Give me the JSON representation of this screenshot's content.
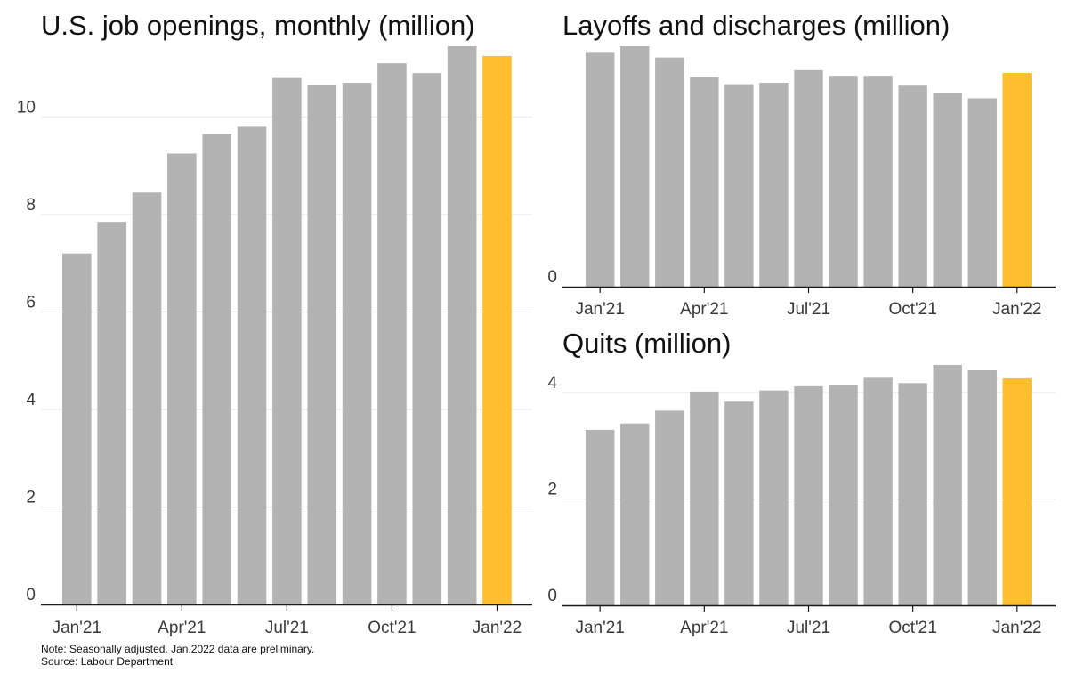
{
  "colors": {
    "bar": "#b3b3b3",
    "highlight": "#fdbf2d",
    "grid": "#e6e6e6",
    "axis": "#1a1a1a"
  },
  "notes": {
    "note": "Note: Seasonally adjusted. Jan.2022 data are preliminary.",
    "source": "Source: Labour Department"
  },
  "chart_data": [
    {
      "id": "openings",
      "type": "bar",
      "title": "U.S. job openings, monthly (million)",
      "categories": [
        "Jan'21",
        "Feb'21",
        "Mar'21",
        "Apr'21",
        "May'21",
        "Jun'21",
        "Jul'21",
        "Aug'21",
        "Sep'21",
        "Oct'21",
        "Nov'21",
        "Dec'21",
        "Jan'22"
      ],
      "values": [
        7.2,
        7.85,
        8.45,
        9.25,
        9.65,
        9.8,
        10.8,
        10.65,
        10.7,
        11.1,
        10.9,
        11.45,
        11.25
      ],
      "highlight_index": 12,
      "x_tick_labels": [
        "Jan'21",
        "Apr'21",
        "Jul'21",
        "Oct'21",
        "Jan'22"
      ],
      "y_ticks": [
        "0",
        "2",
        "4",
        "6",
        "8",
        "10"
      ],
      "ylim": [
        0,
        11.45
      ],
      "grid": true
    },
    {
      "id": "layoffs",
      "type": "bar",
      "title": "Layoffs and discharges (million)",
      "categories": [
        "Jan'21",
        "Feb'21",
        "Mar'21",
        "Apr'21",
        "May'21",
        "Jun'21",
        "Jul'21",
        "Aug'21",
        "Sep'21",
        "Oct'21",
        "Nov'21",
        "Dec'21",
        "Jan'22"
      ],
      "values": [
        1.67,
        1.71,
        1.63,
        1.49,
        1.44,
        1.45,
        1.54,
        1.5,
        1.5,
        1.43,
        1.38,
        1.34,
        1.52
      ],
      "highlight_index": 12,
      "x_tick_labels": [
        "Jan'21",
        "Apr'21",
        "Jul'21",
        "Oct'21",
        "Jan'22"
      ],
      "y_ticks": [
        "0"
      ],
      "ylim": [
        0,
        1.71
      ],
      "grid": false
    },
    {
      "id": "quits",
      "type": "bar",
      "title": "Quits (million)",
      "categories": [
        "Jan'21",
        "Feb'21",
        "Mar'21",
        "Apr'21",
        "May'21",
        "Jun'21",
        "Jul'21",
        "Aug'21",
        "Sep'21",
        "Oct'21",
        "Nov'21",
        "Dec'21",
        "Jan'22"
      ],
      "values": [
        3.3,
        3.42,
        3.66,
        4.02,
        3.83,
        4.04,
        4.12,
        4.15,
        4.28,
        4.18,
        4.52,
        4.42,
        4.27
      ],
      "highlight_index": 12,
      "x_tick_labels": [
        "Jan'21",
        "Apr'21",
        "Jul'21",
        "Oct'21",
        "Jan'22"
      ],
      "y_ticks": [
        "0",
        "2",
        "4"
      ],
      "ylim": [
        0,
        4.52
      ],
      "grid": true
    }
  ]
}
